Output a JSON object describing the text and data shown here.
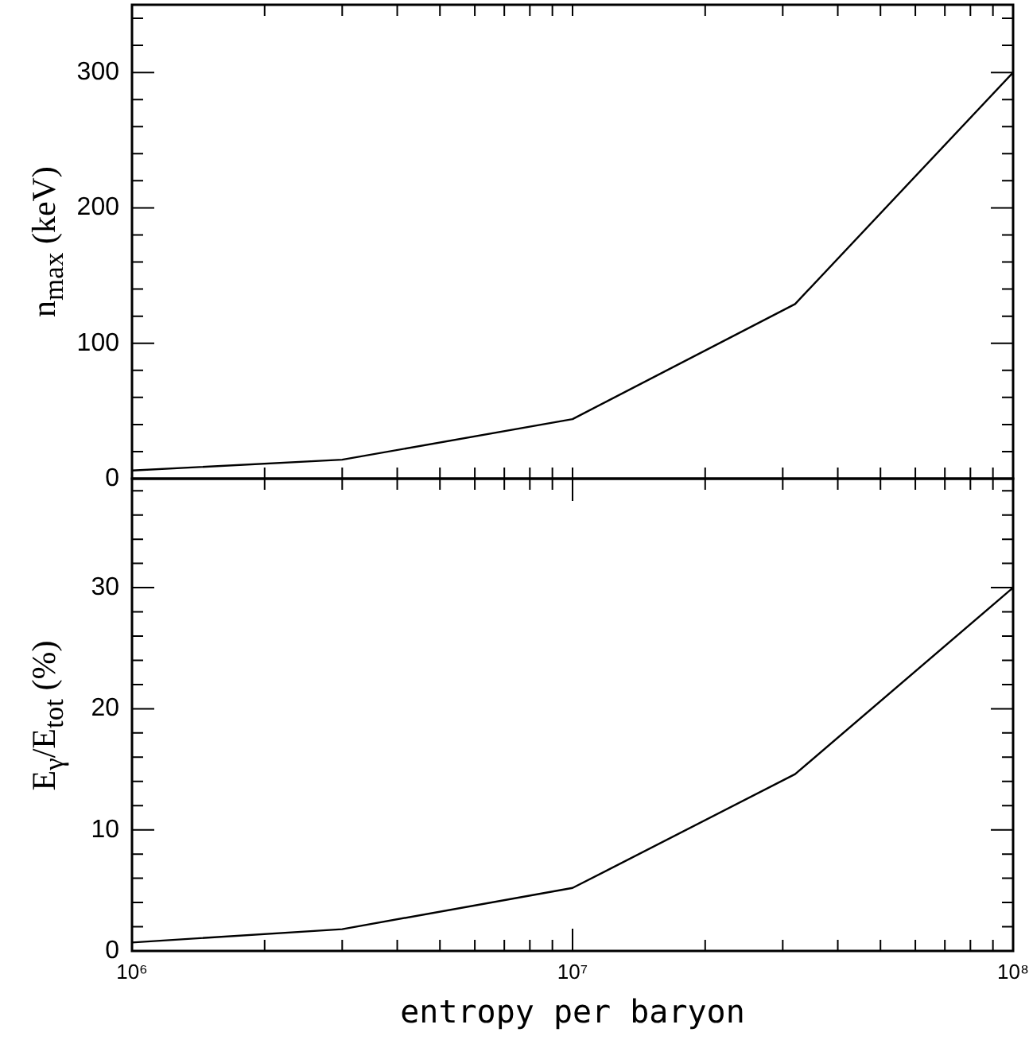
{
  "chart_data": [
    {
      "type": "line",
      "log": "x",
      "tick_labels": "y",
      "ylabel": "n$_{max}$  (keV)",
      "x": [
        1000000,
        3000000,
        10000000,
        32000000,
        100000000
      ],
      "series": [
        {
          "color": "#000000",
          "values": [
            6,
            14,
            44,
            129,
            300
          ]
        }
      ],
      "xlim": [
        1000000,
        100000000
      ],
      "xticks": [
        {
          "value": 1000000,
          "label": null
        },
        {
          "value": 2000000,
          "label": null
        },
        {
          "value": 3000000,
          "label": null
        },
        {
          "value": 4000000,
          "label": null
        },
        {
          "value": 5000000,
          "label": null
        },
        {
          "value": 6000000,
          "label": null
        },
        {
          "value": 7000000,
          "label": null
        },
        {
          "value": 8000000,
          "label": null
        },
        {
          "value": 9000000,
          "label": null
        },
        {
          "value": 10000000,
          "label": null
        },
        {
          "value": 20000000,
          "label": null
        },
        {
          "value": 30000000,
          "label": null
        },
        {
          "value": 40000000,
          "label": null
        },
        {
          "value": 50000000,
          "label": null
        },
        {
          "value": 60000000,
          "label": null
        },
        {
          "value": 70000000,
          "label": null
        },
        {
          "value": 80000000,
          "label": null
        },
        {
          "value": 90000000,
          "label": null
        },
        {
          "value": 100000000,
          "label": null
        }
      ],
      "ylim": [
        0,
        350
      ],
      "yticks": [
        0,
        {
          "value": 20,
          "label": null
        },
        {
          "value": 40,
          "label": null
        },
        {
          "value": 60,
          "label": null
        },
        {
          "value": 80,
          "label": null
        },
        100,
        {
          "value": 120,
          "label": null
        },
        {
          "value": 140,
          "label": null
        },
        {
          "value": 160,
          "label": null
        },
        {
          "value": 180,
          "label": null
        },
        200,
        {
          "value": 220,
          "label": null
        },
        {
          "value": 240,
          "label": null
        },
        {
          "value": 260,
          "label": null
        },
        {
          "value": 280,
          "label": null
        },
        300,
        {
          "value": 320,
          "label": null
        },
        {
          "value": 340,
          "label": null
        }
      ]
    },
    {
      "type": "line",
      "log": "x",
      "ylabel": "E$_{γ}$/E$_{tot}$  (%)",
      "xlabel": "entropy per baryon",
      "x": [
        1000000,
        3000000,
        10000000,
        32000000,
        100000000
      ],
      "series": [
        {
          "color": "#000000",
          "values": [
            0.7,
            1.8,
            5.2,
            14.6,
            30
          ]
        }
      ],
      "xlim": [
        1000000,
        100000000
      ],
      "xticks": [
        {
          "value": 1000000,
          "label": "10⁶"
        },
        {
          "value": 2000000,
          "label": null
        },
        {
          "value": 3000000,
          "label": null
        },
        {
          "value": 4000000,
          "label": null
        },
        {
          "value": 5000000,
          "label": null
        },
        {
          "value": 6000000,
          "label": null
        },
        {
          "value": 7000000,
          "label": null
        },
        {
          "value": 8000000,
          "label": null
        },
        {
          "value": 9000000,
          "label": null
        },
        {
          "value": 10000000,
          "label": "10⁷"
        },
        {
          "value": 20000000,
          "label": null
        },
        {
          "value": 30000000,
          "label": null
        },
        {
          "value": 40000000,
          "label": null
        },
        {
          "value": 50000000,
          "label": null
        },
        {
          "value": 60000000,
          "label": null
        },
        {
          "value": 70000000,
          "label": null
        },
        {
          "value": 80000000,
          "label": null
        },
        {
          "value": 90000000,
          "label": null
        },
        {
          "value": 100000000,
          "label": "10⁸"
        }
      ],
      "ylim": [
        0,
        39
      ],
      "yticks": [
        0,
        {
          "value": 2,
          "label": null
        },
        {
          "value": 4,
          "label": null
        },
        {
          "value": 6,
          "label": null
        },
        {
          "value": 8,
          "label": null
        },
        10,
        {
          "value": 12,
          "label": null
        },
        {
          "value": 14,
          "label": null
        },
        {
          "value": 16,
          "label": null
        },
        {
          "value": 18,
          "label": null
        },
        20,
        {
          "value": 22,
          "label": null
        },
        {
          "value": 24,
          "label": null
        },
        {
          "value": 26,
          "label": null
        },
        {
          "value": 28,
          "label": null
        },
        30,
        {
          "value": 32,
          "label": null
        },
        {
          "value": 34,
          "label": null
        },
        {
          "value": 36,
          "label": null
        },
        {
          "value": 38,
          "label": null
        }
      ]
    }
  ]
}
